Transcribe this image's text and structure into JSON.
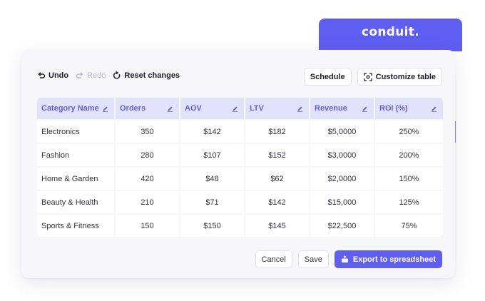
{
  "brand": {
    "name": "conduit."
  },
  "toolbar": {
    "undo_label": "Undo",
    "redo_label": "Redo",
    "reset_label": "Reset changes",
    "schedule_label": "Schedule",
    "customize_label": "Customize table"
  },
  "table": {
    "columns": [
      "Category Name",
      "Orders",
      "AOV",
      "LTV",
      "Revenue",
      "ROI (%)"
    ],
    "rows": [
      [
        "Electronics",
        "350",
        "$142",
        "$182",
        "$5,0000",
        "250%"
      ],
      [
        "Fashion",
        "280",
        "$107",
        "$152",
        "$3,0000",
        "200%"
      ],
      [
        "Home & Garden",
        "420",
        "$48",
        "$62",
        "$2,0000",
        "150%"
      ],
      [
        "Beauty & Health",
        "210",
        "$71",
        "$142",
        "$15,000",
        "125%"
      ],
      [
        "Sports & Fitness",
        "150",
        "$150",
        "$145",
        "$22,500",
        "75%"
      ]
    ]
  },
  "footer": {
    "cancel_label": "Cancel",
    "save_label": "Save",
    "export_label": "Export to spreadsheet"
  },
  "colors": {
    "accent": "#5f5ef3",
    "header_bg": "#e3e2fb",
    "card_bg": "#f7f7fa"
  }
}
